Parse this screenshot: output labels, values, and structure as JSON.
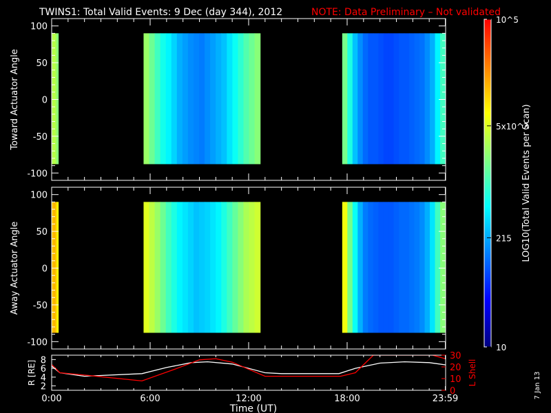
{
  "title": {
    "main": "TWINS1: Total Valid Events:  9 Dec (day 344), 2012",
    "note": "NOTE: Data Preliminary – Not validated",
    "note_color": "#ff0000"
  },
  "stamp": "7 Jan 13",
  "colorbar": {
    "label": "LOG10(Total Valid Events per Scan)",
    "ticks": [
      {
        "label": "10^5",
        "value": 100000
      },
      {
        "label": "5x10^3",
        "value": 5000
      },
      {
        "label": "215",
        "value": 215
      },
      {
        "label": "10",
        "value": 10
      }
    ],
    "range": [
      10,
      100000
    ],
    "scale": "log",
    "colors": [
      "#000080",
      "#0000ff",
      "#0080ff",
      "#00ffff",
      "#80ff80",
      "#ffff00",
      "#ff8000",
      "#ff0000"
    ]
  },
  "x_axis": {
    "label": "Time (UT)",
    "range_hours": [
      0,
      24
    ],
    "ticks": [
      {
        "label": "0:00",
        "hour": 0
      },
      {
        "label": "6:00",
        "hour": 6
      },
      {
        "label": "12:00",
        "hour": 12
      },
      {
        "label": "18:00",
        "hour": 18
      },
      {
        "label": "23:59",
        "hour": 23.98
      }
    ]
  },
  "chart_data": [
    {
      "type": "heatmap",
      "ylabel": "Toward Actuator Angle",
      "ylim": [
        -110,
        110
      ],
      "yticks": [
        100,
        50,
        0,
        -50,
        -100
      ],
      "angle_range": [
        -88,
        90
      ],
      "colorbar_level_per_interval": "fraction of colorbar range 0-1",
      "intervals": [
        {
          "start": 0.0,
          "end": 0.4,
          "levels": [
            0.62,
            0.64,
            0.62,
            0.58
          ]
        },
        {
          "start": 5.6,
          "end": 12.7,
          "levels": [
            0.6,
            0.55,
            0.5,
            0.45,
            0.42,
            0.38,
            0.34,
            0.32,
            0.3,
            0.29,
            0.28,
            0.3,
            0.32,
            0.34,
            0.36,
            0.4,
            0.44,
            0.48,
            0.52,
            0.55,
            0.58
          ]
        },
        {
          "start": 17.7,
          "end": 23.98,
          "levels": [
            0.56,
            0.46,
            0.36,
            0.3,
            0.26,
            0.24,
            0.24,
            0.23,
            0.22,
            0.22,
            0.23,
            0.24,
            0.24,
            0.25,
            0.26,
            0.27,
            0.3,
            0.34,
            0.42,
            0.5
          ]
        }
      ]
    },
    {
      "type": "heatmap",
      "ylabel": "Away Actuator Angle",
      "ylim": [
        -110,
        110
      ],
      "yticks": [
        100,
        50,
        0,
        -50,
        -100
      ],
      "angle_range": [
        -88,
        90
      ],
      "colorbar_level_per_interval": "fraction of colorbar range 0-1",
      "intervals": [
        {
          "start": 0.0,
          "end": 0.4,
          "levels": [
            0.78,
            0.8,
            0.78,
            0.72
          ]
        },
        {
          "start": 5.6,
          "end": 12.7,
          "levels": [
            0.68,
            0.64,
            0.6,
            0.55,
            0.5,
            0.46,
            0.42,
            0.4,
            0.38,
            0.36,
            0.37,
            0.38,
            0.4,
            0.42,
            0.46,
            0.5,
            0.54,
            0.58,
            0.62,
            0.64,
            0.66
          ]
        },
        {
          "start": 17.7,
          "end": 23.98,
          "levels": [
            0.7,
            0.56,
            0.44,
            0.34,
            0.28,
            0.26,
            0.25,
            0.24,
            0.24,
            0.24,
            0.25,
            0.26,
            0.26,
            0.27,
            0.28,
            0.3,
            0.34,
            0.4,
            0.5,
            0.58
          ]
        }
      ]
    },
    {
      "type": "line",
      "ylabel_left": "R [RE]",
      "ylabel_right": "L Shell",
      "ylim_left": [
        1,
        9
      ],
      "ylim_right": [
        0,
        30
      ],
      "yticks_left": [
        2,
        4,
        6,
        8
      ],
      "yticks_right": [
        10,
        20,
        30
      ],
      "series": [
        {
          "name": "R [RE]",
          "color": "#ffffff",
          "axis": "left",
          "x": [
            0,
            0.5,
            2,
            5.5,
            7,
            8.5,
            9.5,
            11,
            13,
            14,
            17.5,
            18.5,
            20,
            21.5,
            23,
            23.98
          ],
          "y": [
            6.5,
            5,
            4.2,
            4.8,
            6.2,
            7.3,
            7.5,
            7,
            5,
            4.8,
            4.8,
            6,
            7.2,
            7.5,
            7.3,
            6.8
          ]
        },
        {
          "name": "L Shell",
          "color": "#ff0000",
          "axis": "right",
          "x": [
            0,
            0.5,
            2,
            5.5,
            7.5,
            9,
            10,
            11,
            13,
            14,
            17.6,
            18.5,
            19.6,
            20,
            23.2,
            23.98
          ],
          "y": [
            22,
            15,
            13,
            8,
            18,
            26,
            27,
            24,
            12,
            12,
            12,
            15,
            30,
            30,
            30,
            27
          ]
        }
      ]
    }
  ]
}
